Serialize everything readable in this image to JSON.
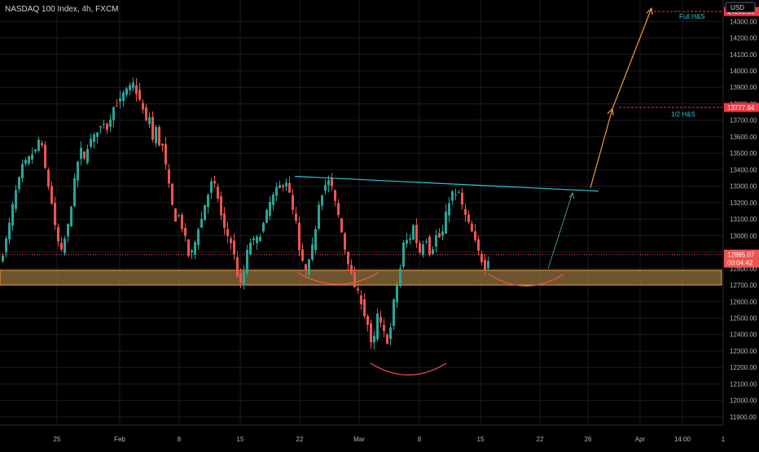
{
  "header": {
    "title": "NASDAQ 100 Index, 4h, FXCM"
  },
  "currency_badge": "USD",
  "colors": {
    "background": "#000000",
    "grid": "#1a1d26",
    "up": "#26a69a",
    "down": "#ef5350",
    "neckline": "#26c6da",
    "support_zone_fill": "#8a6a3a",
    "support_zone_stroke": "#f0a030",
    "projection": "#f59a3c",
    "target_tag": "#f23645",
    "axis_text": "#b2b5be"
  },
  "annotations": {
    "full_hs_label": "Full H&S",
    "half_hs_label": "1/2 H&S",
    "full_hs_price_tag": "14360.00",
    "half_hs_price_tag": "13777.94",
    "current_price_tag": "12885.07",
    "countdown_tag": "00:04:42"
  },
  "chart_data": {
    "type": "candlestick",
    "title": "NASDAQ 100 Index, 4h, FXCM",
    "y_axis": {
      "range": [
        11850,
        14430
      ],
      "ticks": [
        11900,
        12000,
        12100,
        12200,
        12300,
        12400,
        12500,
        12600,
        12700,
        12800,
        12900,
        13000,
        13100,
        13200,
        13300,
        13400,
        13500,
        13600,
        13700,
        13800,
        13900,
        14000,
        14100,
        14200,
        14300
      ],
      "tick_labels": [
        "11900.00",
        "12000.00",
        "12100.00",
        "12200.00",
        "12300.00",
        "12400.00",
        "12500.00",
        "12600.00",
        "12700.00",
        "12800.00",
        "12900.00",
        "13000.00",
        "13100.00",
        "13200.00",
        "13300.00",
        "13400.00",
        "13500.00",
        "13600.00",
        "13700.00",
        "13800.00",
        "13900.00",
        "14000.00",
        "14100.00",
        "14200.00",
        "14300.00"
      ]
    },
    "x_axis": {
      "tick_labels": [
        "25",
        "Feb",
        "8",
        "15",
        "22",
        "Mar",
        "8",
        "15",
        "22",
        "26",
        "Apr",
        "14:00",
        "1"
      ]
    },
    "price_path": [
      [
        0,
        12780
      ],
      [
        3,
        12850
      ],
      [
        8,
        12930
      ],
      [
        12,
        13020
      ],
      [
        16,
        13120
      ],
      [
        20,
        13240
      ],
      [
        24,
        13300
      ],
      [
        28,
        13380
      ],
      [
        32,
        13460
      ],
      [
        36,
        13430
      ],
      [
        40,
        13510
      ],
      [
        44,
        13480
      ],
      [
        48,
        13550
      ],
      [
        52,
        13610
      ],
      [
        56,
        13460
      ],
      [
        59,
        13380
      ],
      [
        62,
        13300
      ],
      [
        64,
        13100
      ],
      [
        66,
        13200
      ],
      [
        70,
        13050
      ],
      [
        74,
        12960
      ],
      [
        78,
        12900
      ],
      [
        82,
        12980
      ],
      [
        86,
        13060
      ],
      [
        90,
        13190
      ],
      [
        94,
        13330
      ],
      [
        98,
        13450
      ],
      [
        102,
        13520
      ],
      [
        106,
        13460
      ],
      [
        110,
        13540
      ],
      [
        114,
        13580
      ],
      [
        118,
        13600
      ],
      [
        122,
        13640
      ],
      [
        126,
        13660
      ],
      [
        130,
        13690
      ],
      [
        134,
        13650
      ],
      [
        138,
        13720
      ],
      [
        142,
        13780
      ],
      [
        146,
        13800
      ],
      [
        150,
        13820
      ],
      [
        154,
        13860
      ],
      [
        158,
        13880
      ],
      [
        162,
        13900
      ],
      [
        166,
        13920
      ],
      [
        170,
        13870
      ],
      [
        174,
        13820
      ],
      [
        178,
        13760
      ],
      [
        182,
        13690
      ],
      [
        186,
        13720
      ],
      [
        190,
        13580
      ],
      [
        194,
        13650
      ],
      [
        198,
        13560
      ],
      [
        202,
        13540
      ],
      [
        206,
        13420
      ],
      [
        210,
        13300
      ],
      [
        214,
        13180
      ],
      [
        218,
        13100
      ],
      [
        222,
        13120
      ],
      [
        226,
        13050
      ],
      [
        230,
        12980
      ],
      [
        234,
        12880
      ],
      [
        238,
        12900
      ],
      [
        242,
        12960
      ],
      [
        246,
        13050
      ],
      [
        250,
        13100
      ],
      [
        254,
        13190
      ],
      [
        258,
        13250
      ],
      [
        262,
        13320
      ],
      [
        266,
        13300
      ],
      [
        270,
        13230
      ],
      [
        274,
        13120
      ],
      [
        278,
        13040
      ],
      [
        282,
        13000
      ],
      [
        286,
        12960
      ],
      [
        290,
        12880
      ],
      [
        294,
        12760
      ],
      [
        298,
        12700
      ],
      [
        302,
        12780
      ],
      [
        306,
        12900
      ],
      [
        310,
        12960
      ],
      [
        314,
        12970
      ],
      [
        318,
        12980
      ],
      [
        322,
        13010
      ],
      [
        326,
        13070
      ],
      [
        330,
        13140
      ],
      [
        334,
        13200
      ],
      [
        338,
        13240
      ],
      [
        342,
        13280
      ],
      [
        346,
        13300
      ],
      [
        350,
        13310
      ],
      [
        354,
        13330
      ],
      [
        358,
        13250
      ],
      [
        362,
        13150
      ],
      [
        366,
        13080
      ],
      [
        370,
        12900
      ],
      [
        374,
        12840
      ],
      [
        378,
        12780
      ],
      [
        382,
        12840
      ],
      [
        386,
        12930
      ],
      [
        390,
        13050
      ],
      [
        394,
        13200
      ],
      [
        398,
        13260
      ],
      [
        402,
        13310
      ],
      [
        406,
        13330
      ],
      [
        410,
        13290
      ],
      [
        414,
        13200
      ],
      [
        418,
        13120
      ],
      [
        422,
        13020
      ],
      [
        426,
        12920
      ],
      [
        430,
        12840
      ],
      [
        434,
        12760
      ],
      [
        438,
        12690
      ],
      [
        442,
        12650
      ],
      [
        446,
        12600
      ],
      [
        450,
        12520
      ],
      [
        454,
        12460
      ],
      [
        458,
        12340
      ],
      [
        462,
        12380
      ],
      [
        466,
        12520
      ],
      [
        470,
        12460
      ],
      [
        474,
        12410
      ],
      [
        478,
        12360
      ],
      [
        482,
        12440
      ],
      [
        486,
        12600
      ],
      [
        490,
        12700
      ],
      [
        494,
        12800
      ],
      [
        498,
        12950
      ],
      [
        502,
        12970
      ],
      [
        506,
        12990
      ],
      [
        510,
        13060
      ],
      [
        514,
        12960
      ],
      [
        518,
        12900
      ],
      [
        522,
        12960
      ],
      [
        526,
        12980
      ],
      [
        530,
        12900
      ],
      [
        534,
        12930
      ],
      [
        538,
        13000
      ],
      [
        542,
        12990
      ],
      [
        546,
        13020
      ],
      [
        550,
        13130
      ],
      [
        554,
        13210
      ],
      [
        558,
        13260
      ],
      [
        562,
        13240
      ],
      [
        566,
        13260
      ],
      [
        570,
        13180
      ],
      [
        574,
        13120
      ],
      [
        578,
        13070
      ],
      [
        582,
        13020
      ],
      [
        586,
        12960
      ],
      [
        590,
        12900
      ],
      [
        594,
        12850
      ],
      [
        598,
        12810
      ],
      [
        600,
        12860
      ]
    ],
    "support_zone": {
      "from": 12700,
      "to": 12790
    },
    "neckline": {
      "start": [
        362,
        13360
      ],
      "end": [
        735,
        13270
      ]
    },
    "projection_path": [
      [
        673,
        12800
      ],
      [
        703,
        13260
      ]
    ],
    "target_path": [
      [
        725,
        13290
      ],
      [
        752,
        13770
      ],
      [
        800,
        14380
      ]
    ],
    "half_hs_level": 13777.94,
    "full_hs_level": 14360.0,
    "current_price": 12885.07,
    "shoulder_arcs": [
      {
        "x1": 365,
        "x2": 465,
        "price": 12760
      },
      {
        "x1": 455,
        "x2": 548,
        "price": 12210
      },
      {
        "x1": 600,
        "x2": 692,
        "price": 12750
      }
    ]
  }
}
